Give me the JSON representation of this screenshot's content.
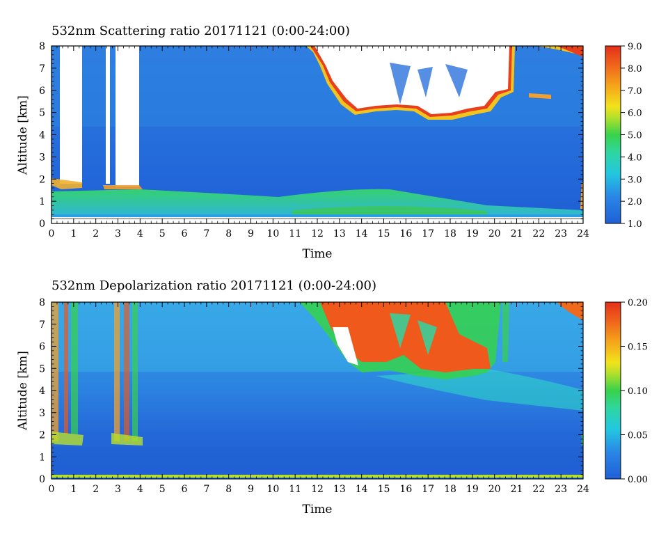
{
  "chart_data": [
    {
      "type": "heatmap",
      "title": "532nm Scattering ratio  20171121 (0:00-24:00)",
      "xlabel": "Time",
      "ylabel": "Altitude [km]",
      "xlim": [
        0,
        24
      ],
      "ylim": [
        0,
        8
      ],
      "x_ticks": [
        "0",
        "1",
        "2",
        "3",
        "4",
        "5",
        "6",
        "7",
        "8",
        "9",
        "10",
        "11",
        "12",
        "13",
        "14",
        "15",
        "16",
        "17",
        "18",
        "19",
        "20",
        "21",
        "22",
        "23",
        "24"
      ],
      "y_ticks": [
        "0",
        "1",
        "2",
        "3",
        "4",
        "5",
        "6",
        "7",
        "8"
      ],
      "colorbar": {
        "range": [
          1.0,
          9.0
        ],
        "ticks": [
          "1.0",
          "2.0",
          "3.0",
          "4.0",
          "5.0",
          "6.0",
          "7.0",
          "8.0",
          "9.0"
        ]
      }
    },
    {
      "type": "heatmap",
      "title": "532nm Depolarization ratio  20171121 (0:00-24:00)",
      "xlabel": "Time",
      "ylabel": "Altitude [km]",
      "xlim": [
        0,
        24
      ],
      "ylim": [
        0,
        8
      ],
      "x_ticks": [
        "0",
        "1",
        "2",
        "3",
        "4",
        "5",
        "6",
        "7",
        "8",
        "9",
        "10",
        "11",
        "12",
        "13",
        "14",
        "15",
        "16",
        "17",
        "18",
        "19",
        "20",
        "21",
        "22",
        "23",
        "24"
      ],
      "y_ticks": [
        "0",
        "1",
        "2",
        "3",
        "4",
        "5",
        "6",
        "7",
        "8"
      ],
      "colorbar": {
        "range": [
          0.0,
          0.2
        ],
        "ticks": [
          "0.00",
          "0.05",
          "0.10",
          "0.15",
          "0.20"
        ]
      }
    }
  ]
}
